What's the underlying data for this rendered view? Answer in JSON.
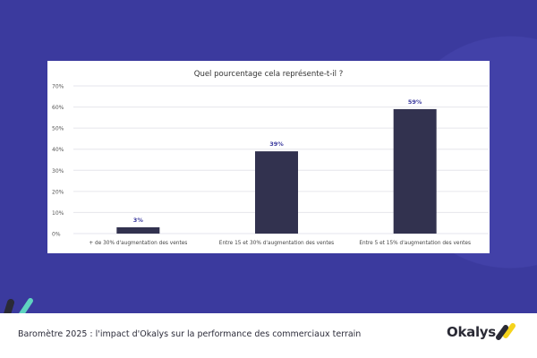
{
  "colors": {
    "background": "#3b3a9e",
    "bar": "#32324f",
    "data_label": "#3b3a9e",
    "accent_teal": "#5fd3c0",
    "accent_yellow": "#f5d31c"
  },
  "footer": {
    "text": "Baromètre 2025 : l'impact d'Okalys sur la performance des commerciaux terrain",
    "logo": "Okalys"
  },
  "chart_data": {
    "type": "bar",
    "title": "Quel pourcentage cela représente-t-il ?",
    "categories": [
      "+ de 30% d'augmentation des ventes",
      "Entre 15 et 30% d'augmentation des ventes",
      "Entre 5 et 15% d'augmentation des ventes"
    ],
    "values": [
      3,
      39,
      59
    ],
    "data_labels": [
      "3%",
      "39%",
      "59%"
    ],
    "ylim": [
      0,
      70
    ],
    "yticks": [
      "0%",
      "10%",
      "20%",
      "30%",
      "40%",
      "50%",
      "60%",
      "70%"
    ],
    "grid": true,
    "xlabel": "",
    "ylabel": ""
  }
}
